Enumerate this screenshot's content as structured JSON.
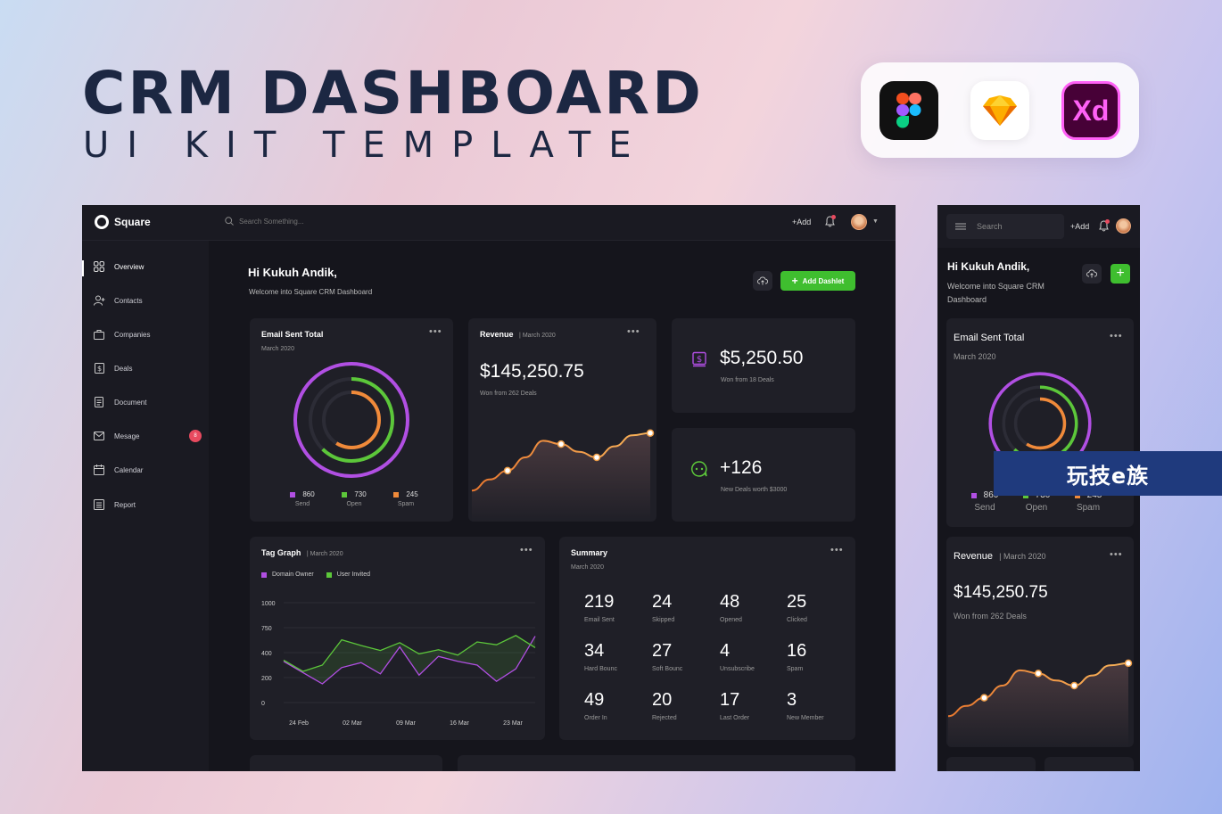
{
  "hero": {
    "title": "CRM DASHBOARD",
    "subtitle": "UI KIT TEMPLATE"
  },
  "tools": {
    "xd_label": "Xd"
  },
  "app": {
    "brand": "Square",
    "search_placeholder": "Search Something...",
    "add_label": "+Add",
    "greeting": "Hi Kukuh Andik,",
    "welcome": "Welcome into Square CRM Dashboard",
    "add_dashlet": "Add Dashlet"
  },
  "sidebar": {
    "items": [
      {
        "label": "Overview",
        "icon": "grid-icon"
      },
      {
        "label": "Contacts",
        "icon": "user-plus-icon"
      },
      {
        "label": "Companies",
        "icon": "briefcase-icon"
      },
      {
        "label": "Deals",
        "icon": "dollar-icon"
      },
      {
        "label": "Document",
        "icon": "document-icon"
      },
      {
        "label": "Mesage",
        "icon": "mail-icon",
        "badge": "8"
      },
      {
        "label": "Calendar",
        "icon": "calendar-icon"
      },
      {
        "label": "Report",
        "icon": "report-icon"
      }
    ]
  },
  "email_card": {
    "title": "Email Sent Total",
    "subtitle": "March 2020",
    "stats": [
      {
        "value": "860",
        "label": "Send",
        "color": "#b14fe3"
      },
      {
        "value": "730",
        "label": "Open",
        "color": "#5cc73a"
      },
      {
        "value": "245",
        "label": "Spam",
        "color": "#f08a3a"
      }
    ]
  },
  "revenue_card": {
    "title": "Revenue",
    "subtitle": "March 2020",
    "value": "$145,250.75",
    "sub": "Won from 262 Deals"
  },
  "deals_card": {
    "value": "$5,250.50",
    "sub": "Won from 18 Deals"
  },
  "new_deals_card": {
    "value": "+126",
    "sub": "New Deals worth $3000"
  },
  "tag_graph": {
    "title": "Tag Graph",
    "subtitle": "March 2020",
    "legend": [
      {
        "name": "Domain Owner",
        "color": "#b14fe3"
      },
      {
        "name": "User Invited",
        "color": "#5cc73a"
      }
    ],
    "y_ticks": [
      "1000",
      "750",
      "400",
      "200",
      "0"
    ],
    "x_ticks": [
      "24 Feb",
      "02 Mar",
      "09 Mar",
      "16 Mar",
      "23 Mar"
    ]
  },
  "chart_data": [
    {
      "type": "area",
      "title": "Revenue",
      "x": [
        0,
        1,
        2,
        3,
        4,
        5,
        6,
        7,
        8,
        9,
        10
      ],
      "values": [
        20,
        30,
        38,
        50,
        65,
        62,
        55,
        50,
        60,
        70,
        72
      ],
      "ylim": [
        0,
        100
      ]
    },
    {
      "type": "line",
      "title": "Tag Graph",
      "categories": [
        "24 Feb",
        "02 Mar",
        "09 Mar",
        "16 Mar",
        "23 Mar"
      ],
      "x": [
        0,
        1,
        2,
        3,
        4,
        5,
        6,
        7,
        8,
        9,
        10,
        11,
        12,
        13
      ],
      "series": [
        {
          "name": "Domain Owner",
          "color": "#b14fe3",
          "values": [
            330,
            240,
            150,
            280,
            320,
            230,
            480,
            220,
            370,
            330,
            300,
            170,
            270,
            630
          ]
        },
        {
          "name": "User Invited",
          "color": "#5cc73a",
          "values": [
            340,
            250,
            300,
            580,
            500,
            430,
            540,
            390,
            440,
            380,
            550,
            510,
            640,
            470
          ]
        }
      ],
      "ylim": [
        0,
        1000
      ]
    }
  ],
  "summary": {
    "title": "Summary",
    "subtitle": "March 2020",
    "cells": [
      {
        "value": "219",
        "label": "Email Sent"
      },
      {
        "value": "24",
        "label": "Skipped"
      },
      {
        "value": "48",
        "label": "Opened"
      },
      {
        "value": "25",
        "label": "Clicked"
      },
      {
        "value": "34",
        "label": "Hard Bounc"
      },
      {
        "value": "27",
        "label": "Soft Bounc"
      },
      {
        "value": "4",
        "label": "Unsubscribe"
      },
      {
        "value": "16",
        "label": "Spam"
      },
      {
        "value": "49",
        "label": "Order In"
      },
      {
        "value": "20",
        "label": "Rejected"
      },
      {
        "value": "17",
        "label": "Last Order"
      },
      {
        "value": "3",
        "label": "New Member"
      }
    ]
  },
  "mobile": {
    "search_placeholder": "Search",
    "add_label": "+Add",
    "greeting": "Hi Kukuh Andik,",
    "welcome": "Welcome into Square CRM Dashboard"
  },
  "watermark": "玩技e族"
}
